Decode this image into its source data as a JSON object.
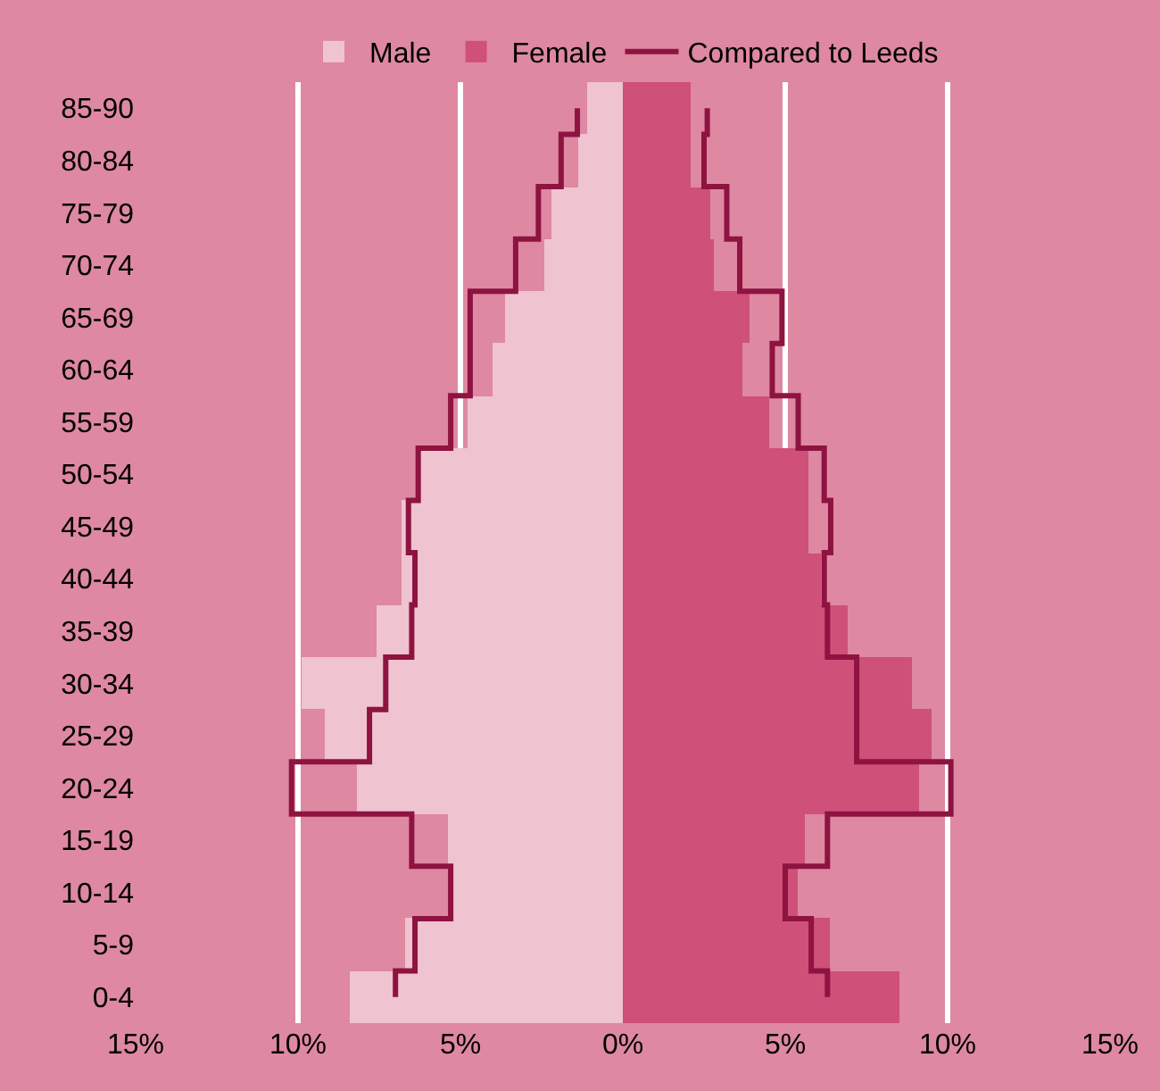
{
  "chart_data": {
    "type": "bar",
    "orientation": "horizontal",
    "stacked": true,
    "categories": [
      "85-90",
      "80-84",
      "75-79",
      "70-74",
      "65-69",
      "60-64",
      "55-59",
      "50-54",
      "45-49",
      "40-44",
      "35-39",
      "30-34",
      "25-29",
      "20-24",
      "15-19",
      "10-14",
      "5-9",
      "0-4"
    ],
    "series": [
      {
        "name": "Male",
        "color": "#efc3cf",
        "values": [
          -1.1,
          -1.4,
          -2.2,
          -2.4,
          -3.6,
          -4.0,
          -4.8,
          -6.3,
          -6.8,
          -6.8,
          -7.6,
          -9.9,
          -9.2,
          -8.2,
          -5.4,
          -5.3,
          -6.7,
          -8.4
        ]
      },
      {
        "name": "Female",
        "color": "#cf5078",
        "values": [
          2.1,
          2.1,
          2.7,
          2.8,
          3.9,
          3.7,
          4.5,
          5.7,
          5.7,
          6.1,
          6.9,
          8.9,
          9.5,
          9.1,
          5.6,
          5.4,
          6.4,
          8.5
        ]
      },
      {
        "name": "Compared to Leeds",
        "type": "step",
        "color": "#8e1340",
        "values": [
          -1.4,
          -1.9,
          -2.6,
          -3.3,
          -4.7,
          -4.7,
          -5.3,
          -6.3,
          -6.6,
          -6.4,
          -6.5,
          -7.3,
          -7.8,
          -10.2,
          -6.5,
          -5.3,
          -6.4,
          -7.0
        ]
      },
      {
        "type": "step",
        "color": "#8e1340",
        "values": [
          2.6,
          2.5,
          3.2,
          3.6,
          4.9,
          4.6,
          5.4,
          6.2,
          6.4,
          6.2,
          6.3,
          7.2,
          7.2,
          10.1,
          6.3,
          5.0,
          5.8,
          6.3
        ]
      }
    ],
    "xlim": [
      -15,
      15
    ],
    "xticks": [
      {
        "value": -15,
        "label": "15%"
      },
      {
        "value": -10,
        "label": "10%"
      },
      {
        "value": -5,
        "label": "5%"
      },
      {
        "value": 0,
        "label": "0%"
      },
      {
        "value": 5,
        "label": "5%"
      },
      {
        "value": 10,
        "label": "10%"
      },
      {
        "value": 15,
        "label": "15%"
      }
    ],
    "grid": "x",
    "legend": "top",
    "marker": "none",
    "line_style": "solid"
  }
}
